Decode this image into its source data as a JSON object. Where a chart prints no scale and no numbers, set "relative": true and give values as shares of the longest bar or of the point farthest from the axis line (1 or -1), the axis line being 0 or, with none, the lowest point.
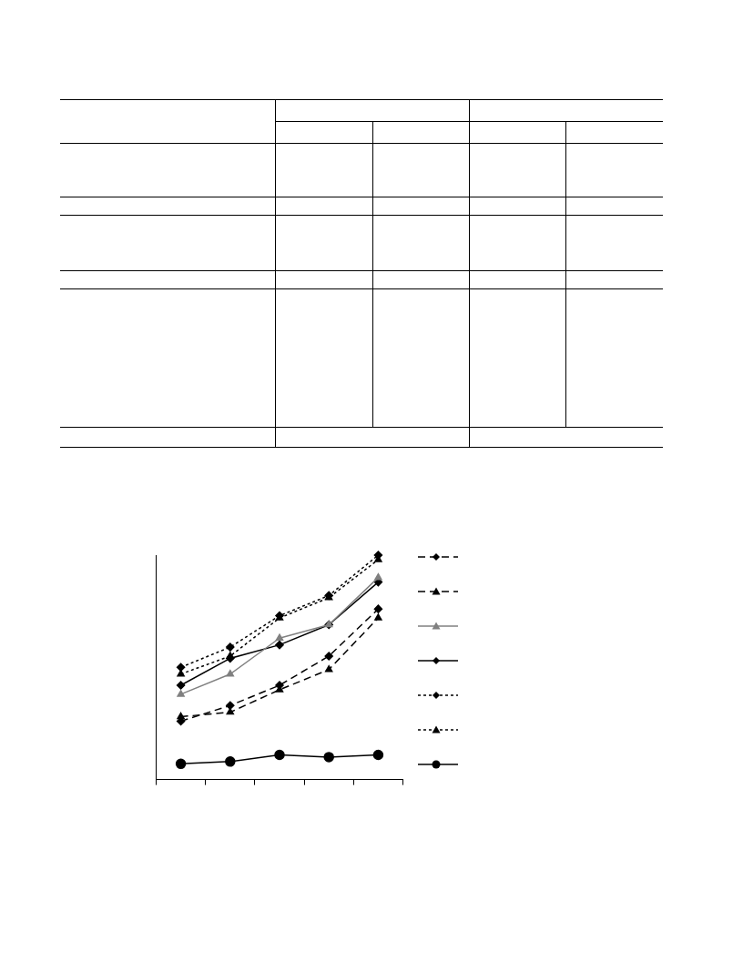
{
  "chart_data": {
    "type": "line",
    "relative": true,
    "categories": [
      null,
      null,
      null,
      null,
      null
    ],
    "grid": false,
    "series": [
      {
        "color": "#000000",
        "line_style": "dashed",
        "marker": "diamond",
        "values": [
          0.26,
          0.33,
          0.42,
          0.55,
          0.76
        ]
      },
      {
        "color": "#000000",
        "line_style": "dashed",
        "marker": "triangle",
        "values": [
          0.28,
          0.3,
          0.4,
          0.49,
          0.72
        ]
      },
      {
        "color": "#808080",
        "line_style": "solid",
        "marker": "triangle",
        "values": [
          0.38,
          0.47,
          0.63,
          0.69,
          0.9
        ]
      },
      {
        "color": "#000000",
        "line_style": "solid",
        "marker": "diamond",
        "values": [
          0.42,
          0.54,
          0.6,
          0.69,
          0.88
        ]
      },
      {
        "color": "#000000",
        "line_style": "dotted",
        "marker": "diamond",
        "values": [
          0.5,
          0.59,
          0.73,
          0.82,
          1
        ]
      },
      {
        "color": "#000000",
        "line_style": "dotted",
        "marker": "triangle",
        "values": [
          0.47,
          0.55,
          0.72,
          0.81,
          0.98
        ]
      },
      {
        "color": "#000000",
        "line_style": "solid",
        "marker": "circle",
        "values": [
          0.07,
          0.08,
          0.11,
          0.1,
          0.11
        ]
      }
    ]
  }
}
